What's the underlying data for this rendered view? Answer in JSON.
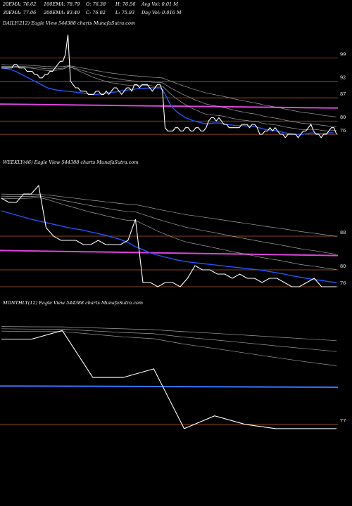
{
  "header": {
    "ema20": "20EMA: 76.62",
    "ema100": "100EMA: 78.79",
    "open": "O: 76.38",
    "high": "H: 76.56",
    "avgvol": "Avg Vol: 0.01 M",
    "ema30": "30EMA: 77.06",
    "ema200": "200EMA: 83.49",
    "close": "C: 76.02",
    "low": "L: 75.93",
    "dayvol": "Day Vol: 0.016 M"
  },
  "colors": {
    "price": "#ffffff",
    "ema_fast": "#2255ff",
    "magenta": "#dd44dd",
    "blue_line": "#3377ff",
    "level": "#b35a1a",
    "ema_slow": "#bbbbbb"
  },
  "chart_data": [
    {
      "type": "line",
      "title": "DAILY(212) Eagle  View  544388  charts MunafaSutra.com",
      "ylim": [
        72,
        108
      ],
      "price_levels": [
        99,
        92,
        87,
        80,
        76
      ],
      "series": [
        {
          "role": "price",
          "values": [
            96,
            96,
            96,
            96,
            96,
            97,
            97,
            96,
            96,
            96,
            95,
            95,
            95,
            94,
            94,
            93,
            93,
            94,
            94,
            95,
            95,
            96,
            97,
            98,
            98,
            100,
            106,
            92,
            91,
            90,
            90,
            89,
            89,
            89,
            88,
            88,
            88,
            89,
            89,
            88,
            88,
            89,
            88,
            89,
            90,
            90,
            89,
            88,
            89,
            90,
            90,
            89,
            91,
            91,
            90,
            91,
            91,
            91,
            90,
            89,
            90,
            91,
            91,
            89,
            78,
            77,
            77,
            77,
            78,
            78,
            77,
            77,
            78,
            78,
            77,
            77,
            78,
            78,
            77,
            77,
            78,
            80,
            81,
            81,
            80,
            81,
            80,
            79,
            79,
            78,
            78,
            78,
            78,
            78,
            79,
            79,
            79,
            78,
            79,
            79,
            78,
            76,
            76,
            77,
            77,
            78,
            77,
            78,
            77,
            76,
            76,
            75,
            76,
            76,
            76,
            76,
            75,
            76,
            77,
            77,
            78,
            79,
            77,
            76,
            76,
            75,
            76,
            76,
            77,
            78,
            78,
            76
          ]
        },
        {
          "role": "ema-fast",
          "values": [
            96,
            95.9,
            95.8,
            95.6,
            95.4,
            95.1,
            94.8,
            94.4,
            94,
            93.6,
            93.2,
            92.8,
            92.4,
            92,
            91.6,
            91.2,
            90.8,
            90.4,
            90,
            89.8,
            89.6,
            89.4,
            89.3,
            89.2,
            89.1,
            89,
            89,
            88.9,
            88.8,
            88.7,
            88.6,
            88.5,
            88.4,
            88.3,
            88.2,
            88.1,
            88,
            88,
            88.1,
            88.2,
            88.3,
            88.4,
            88.5,
            88.6,
            88.7,
            88.8,
            89,
            89.1,
            89.2,
            89.3,
            89.4,
            89.5,
            89.6,
            89.7,
            89.8,
            89.8,
            89.9,
            89.9,
            90,
            90,
            90,
            90,
            90,
            89.5,
            88,
            86.5,
            85,
            84,
            83.2,
            82.5,
            82,
            81.5,
            81,
            80.7,
            80.4,
            80.1,
            79.9,
            79.7,
            79.5,
            79.3,
            79.2,
            79.2,
            79.3,
            79.4,
            79.4,
            79.4,
            79.3,
            79.2,
            79,
            78.9,
            78.8,
            78.7,
            78.6,
            78.6,
            78.6,
            78.6,
            78.5,
            78.5,
            78.5,
            78.4,
            78.2,
            77.9,
            77.7,
            77.5,
            77.4,
            77.3,
            77.2,
            77.1,
            77,
            76.8,
            76.6,
            76.4,
            76.3,
            76.2,
            76.1,
            76,
            75.9,
            75.9,
            76,
            76.1,
            76.3,
            76.4,
            76.4,
            76.3,
            76.2,
            76.2,
            76.2,
            76.3,
            76.4,
            76.5,
            76.4
          ]
        }
      ]
    },
    {
      "type": "line",
      "title": "WEEKLY(46) Eagle  View  544388  charts MunafaSutra.com",
      "ylim": [
        74,
        104
      ],
      "price_levels": [
        88,
        80,
        76
      ],
      "series": [
        {
          "role": "price",
          "values": [
            97,
            96,
            96,
            98,
            98,
            100,
            90,
            88,
            87,
            87,
            87,
            86,
            86,
            87,
            86,
            86,
            86,
            87,
            92,
            77,
            77,
            76,
            77,
            77,
            76,
            78,
            81,
            80,
            80,
            79,
            79,
            78,
            79,
            78,
            78,
            77,
            78,
            78,
            77,
            76,
            76,
            77,
            78,
            76,
            76,
            76
          ]
        },
        {
          "role": "ema-fast",
          "values": [
            94,
            93.5,
            93,
            92.5,
            92,
            91.6,
            91.2,
            90.8,
            90.4,
            90,
            89.7,
            89.4,
            89,
            88.6,
            88.2,
            87.7,
            87.2,
            86.5,
            85.5,
            84.8,
            84,
            83.5,
            83,
            82.6,
            82.2,
            81.9,
            81.7,
            81.5,
            81.3,
            81.1,
            80.9,
            80.7,
            80.5,
            80.3,
            80.1,
            79.9,
            79.6,
            79.3,
            79,
            78.6,
            78.3,
            78,
            77.7,
            77.5,
            77.2,
            77
          ]
        }
      ]
    },
    {
      "type": "line",
      "title": "MONTHLY(12) Eagle  View  544388  charts MunafaSutra.com",
      "ylim": [
        74,
        104
      ],
      "price_levels": [
        77
      ],
      "series": [
        {
          "role": "price",
          "values": [
            97,
            97,
            99,
            88,
            88,
            90,
            76,
            79,
            77,
            76,
            76,
            76
          ]
        },
        {
          "role": "ema-fast",
          "values": [
            86,
            86,
            86,
            86,
            86,
            86,
            86,
            86,
            86,
            86,
            86,
            86
          ]
        }
      ]
    }
  ]
}
